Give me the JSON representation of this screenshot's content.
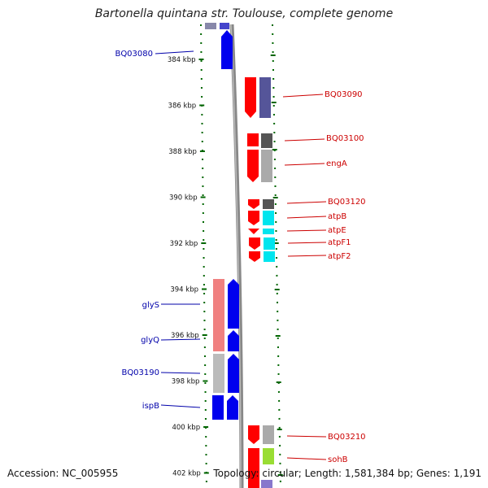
{
  "title": "Bartonella quintana str. Toulouse, complete genome",
  "footer": {
    "accession": "Accession: NC_005955",
    "stats": "Topology: circular; Length: 1,581,384 bp; Genes: 1,191"
  },
  "ruler": [
    "384 kbp",
    "386 kbp",
    "388 kbp",
    "390 kbp",
    "392 kbp",
    "394 kbp",
    "396 kbp",
    "398 kbp",
    "400 kbp",
    "402 kbp"
  ],
  "colors": {
    "forward": "#ff0000",
    "reverse": "#0000ff",
    "cds_forward_label": "#cc0000",
    "cds_reverse_label": "#0000aa",
    "backbone": "#888888"
  },
  "left_labels": [
    "BQ03080",
    "glyS",
    "glyQ",
    "BQ03190",
    "ispB"
  ],
  "right_labels": [
    "BQ03090",
    "BQ03100",
    "engA",
    "BQ03120",
    "atpB",
    "atpE",
    "atpF1",
    "atpF2",
    "BQ03210",
    "sohB"
  ]
}
